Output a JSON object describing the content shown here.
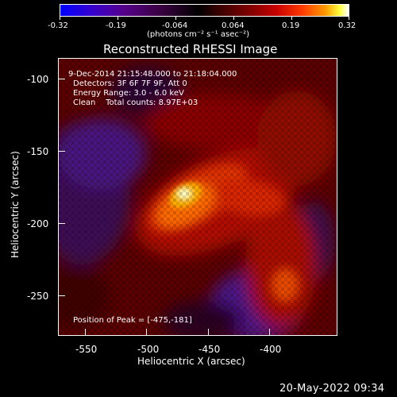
{
  "colorbar": {
    "ticks": [
      "-0.32",
      "-0.19",
      "-0.064",
      "0.064",
      "0.19",
      "0.32"
    ],
    "units": "(photons cm⁻² s⁻¹ asec⁻²)"
  },
  "plot": {
    "title": "Reconstructed RHESSI Image",
    "annotations": {
      "time": "9-Dec-2014 21:15:48.000 to 21:18:04.000",
      "detectors": "Detectors: 3F 6F 7F 9F, Att 0",
      "energy": "Energy Range: 3.0 - 6.0 keV",
      "clean": "Clean    Total counts: 8.97E+03",
      "peak": "Position of Peak = [-475,-181]"
    },
    "x_axis": {
      "title": "Heliocentric X (arcsec)",
      "ticks": [
        "-550",
        "-500",
        "-450",
        "-400"
      ]
    },
    "y_axis": {
      "title": "Heliocentric Y (arcsec)",
      "ticks": [
        "-100",
        "-150",
        "-200",
        "-250"
      ]
    }
  },
  "footer": {
    "date": "20-May-2022 09:34"
  },
  "colors": {
    "background": "#000000",
    "foreground": "#ffffff"
  }
}
